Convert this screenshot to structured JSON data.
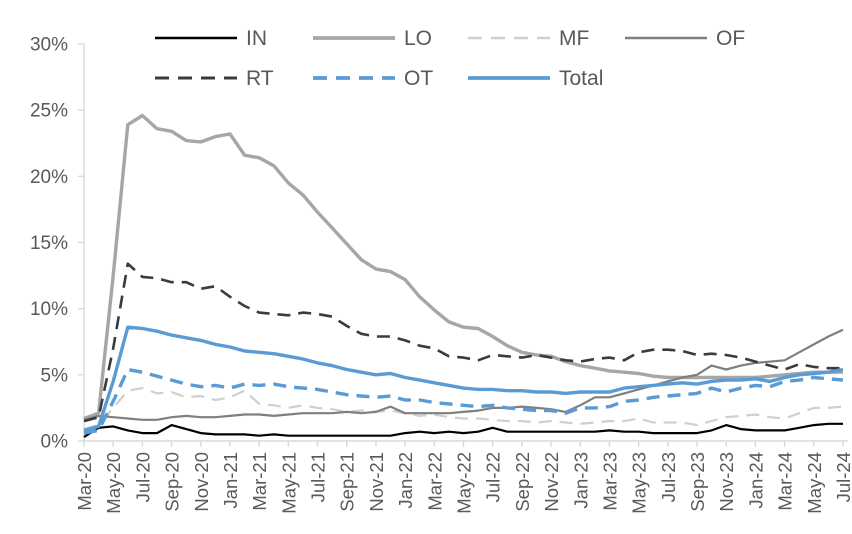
{
  "chart_data": {
    "type": "line",
    "title": "",
    "xlabel": "",
    "ylabel": "",
    "ylim": [
      0,
      30
    ],
    "y_tick_step": 5,
    "grid": false,
    "legend_position": "top",
    "legend_rows": [
      [
        "IN",
        "LO",
        "MF",
        "OF"
      ],
      [
        "RT",
        "OT",
        "Total"
      ]
    ],
    "axis_color": "#d9d9d9",
    "text_color": "#595959",
    "x": [
      "Mar-20",
      "Apr-20",
      "May-20",
      "Jun-20",
      "Jul-20",
      "Aug-20",
      "Sep-20",
      "Oct-20",
      "Nov-20",
      "Dec-20",
      "Jan-21",
      "Feb-21",
      "Mar-21",
      "Apr-21",
      "May-21",
      "Jun-21",
      "Jul-21",
      "Aug-21",
      "Sep-21",
      "Oct-21",
      "Nov-21",
      "Dec-21",
      "Jan-22",
      "Feb-22",
      "Mar-22",
      "Apr-22",
      "May-22",
      "Jun-22",
      "Jul-22",
      "Aug-22",
      "Sep-22",
      "Oct-22",
      "Nov-22",
      "Dec-22",
      "Jan-23",
      "Feb-23",
      "Mar-23",
      "Apr-23",
      "May-23",
      "Jun-23",
      "Jul-23",
      "Aug-23",
      "Sep-23",
      "Oct-23",
      "Nov-23",
      "Dec-23",
      "Jan-24",
      "Feb-24",
      "Mar-24",
      "Apr-24",
      "May-24",
      "Jun-24",
      "Jul-24"
    ],
    "x_tick_labels": [
      "Mar-20",
      "May-20",
      "Jul-20",
      "Sep-20",
      "Nov-20",
      "Jan-21",
      "Mar-21",
      "May-21",
      "Jul-21",
      "Sep-21",
      "Nov-21",
      "Jan-22",
      "Mar-22",
      "May-22",
      "Jul-22",
      "Sep-22",
      "Nov-22",
      "Jan-23",
      "Mar-23",
      "May-23",
      "Jul-23",
      "Sep-23",
      "Nov-23",
      "Jan-24",
      "Mar-24",
      "May-24",
      "Jul-24"
    ],
    "y_tick_labels": [
      "0%",
      "5%",
      "10%",
      "15%",
      "20%",
      "25%",
      "30%"
    ],
    "series": [
      {
        "name": "IN",
        "color": "#000000",
        "dash": false,
        "width": 2.2,
        "values": [
          0.3,
          1.0,
          1.1,
          0.8,
          0.6,
          0.6,
          1.2,
          0.9,
          0.6,
          0.5,
          0.5,
          0.5,
          0.4,
          0.5,
          0.4,
          0.4,
          0.4,
          0.4,
          0.4,
          0.4,
          0.4,
          0.4,
          0.6,
          0.7,
          0.6,
          0.7,
          0.6,
          0.7,
          1.0,
          0.7,
          0.7,
          0.7,
          0.7,
          0.7,
          0.7,
          0.7,
          0.8,
          0.7,
          0.7,
          0.6,
          0.6,
          0.6,
          0.6,
          0.8,
          1.2,
          0.9,
          0.8,
          0.8,
          0.8,
          1.0,
          1.2,
          1.3,
          1.3
        ]
      },
      {
        "name": "LO",
        "color": "#a6a6a6",
        "dash": false,
        "width": 3.4,
        "values": [
          1.7,
          2.1,
          12.5,
          23.9,
          24.6,
          23.6,
          23.4,
          22.7,
          22.6,
          23.0,
          23.2,
          21.6,
          21.4,
          20.8,
          19.5,
          18.6,
          17.3,
          16.1,
          14.9,
          13.7,
          13.0,
          12.8,
          12.2,
          10.9,
          9.9,
          9.0,
          8.6,
          8.5,
          7.9,
          7.2,
          6.7,
          6.5,
          6.4,
          6.0,
          5.7,
          5.5,
          5.3,
          5.2,
          5.1,
          4.9,
          4.8,
          4.8,
          4.8,
          4.8,
          4.8,
          4.8,
          4.8,
          4.9,
          5.0,
          5.1,
          5.2,
          5.2,
          5.2
        ]
      },
      {
        "name": "MF",
        "color": "#cfcfcf",
        "dash": true,
        "width": 2.2,
        "values": [
          0.9,
          1.2,
          2.5,
          3.8,
          4.0,
          3.6,
          3.7,
          3.3,
          3.4,
          3.1,
          3.3,
          3.8,
          2.8,
          2.7,
          2.5,
          2.7,
          2.5,
          2.4,
          2.2,
          2.3,
          2.2,
          2.3,
          2.1,
          1.9,
          2.0,
          1.8,
          1.7,
          1.7,
          1.6,
          1.5,
          1.5,
          1.4,
          1.5,
          1.4,
          1.3,
          1.4,
          1.5,
          1.5,
          1.7,
          1.4,
          1.4,
          1.4,
          1.2,
          1.5,
          1.8,
          1.9,
          2.0,
          1.8,
          1.7,
          2.1,
          2.5,
          2.5,
          2.6
        ]
      },
      {
        "name": "OF",
        "color": "#7f7f7f",
        "dash": false,
        "width": 2.2,
        "values": [
          1.6,
          1.9,
          1.8,
          1.7,
          1.6,
          1.6,
          1.8,
          1.9,
          1.8,
          1.8,
          1.9,
          2.0,
          2.0,
          1.9,
          2.0,
          2.1,
          2.1,
          2.1,
          2.2,
          2.1,
          2.2,
          2.6,
          2.1,
          2.1,
          2.1,
          2.1,
          2.2,
          2.3,
          2.5,
          2.5,
          2.6,
          2.5,
          2.4,
          2.2,
          2.7,
          3.3,
          3.3,
          3.6,
          3.9,
          4.2,
          4.5,
          4.8,
          5.0,
          5.7,
          5.4,
          5.7,
          5.9,
          6.0,
          6.1,
          6.7,
          7.3,
          7.9,
          8.4
        ]
      },
      {
        "name": "RT",
        "color": "#3b3b3b",
        "dash": true,
        "width": 2.6,
        "values": [
          1.5,
          1.8,
          7.0,
          13.4,
          12.4,
          12.3,
          12.0,
          12.0,
          11.5,
          11.7,
          10.9,
          10.2,
          9.7,
          9.6,
          9.5,
          9.7,
          9.6,
          9.4,
          8.7,
          8.1,
          7.9,
          7.9,
          7.6,
          7.2,
          7.0,
          6.4,
          6.3,
          6.1,
          6.5,
          6.4,
          6.3,
          6.5,
          6.3,
          6.1,
          6.0,
          6.2,
          6.3,
          6.1,
          6.7,
          6.9,
          6.9,
          6.8,
          6.5,
          6.6,
          6.5,
          6.3,
          6.0,
          5.7,
          5.4,
          5.8,
          5.6,
          5.5,
          5.5
        ]
      },
      {
        "name": "OT",
        "color": "#5b9bd5",
        "dash": true,
        "width": 3.4,
        "values": [
          0.6,
          0.8,
          3.0,
          5.4,
          5.2,
          4.9,
          4.6,
          4.3,
          4.1,
          4.2,
          4.0,
          4.3,
          4.2,
          4.3,
          4.1,
          4.0,
          3.9,
          3.7,
          3.5,
          3.4,
          3.3,
          3.4,
          3.1,
          3.1,
          2.9,
          2.8,
          2.7,
          2.6,
          2.7,
          2.5,
          2.4,
          2.3,
          2.3,
          2.1,
          2.5,
          2.5,
          2.6,
          3.0,
          3.1,
          3.3,
          3.4,
          3.5,
          3.6,
          4.0,
          3.7,
          4.0,
          4.2,
          4.1,
          4.5,
          4.6,
          4.8,
          4.7,
          4.6
        ]
      },
      {
        "name": "Total",
        "color": "#5b9bd5",
        "dash": false,
        "width": 3.4,
        "values": [
          0.8,
          1.1,
          4.5,
          8.6,
          8.5,
          8.3,
          8.0,
          7.8,
          7.6,
          7.3,
          7.1,
          6.8,
          6.7,
          6.6,
          6.4,
          6.2,
          5.9,
          5.7,
          5.4,
          5.2,
          5.0,
          5.1,
          4.8,
          4.6,
          4.4,
          4.2,
          4.0,
          3.9,
          3.9,
          3.8,
          3.8,
          3.7,
          3.7,
          3.6,
          3.7,
          3.7,
          3.7,
          4.0,
          4.1,
          4.2,
          4.3,
          4.4,
          4.3,
          4.5,
          4.6,
          4.6,
          4.7,
          4.5,
          4.8,
          5.0,
          5.1,
          5.2,
          5.4
        ]
      }
    ]
  }
}
